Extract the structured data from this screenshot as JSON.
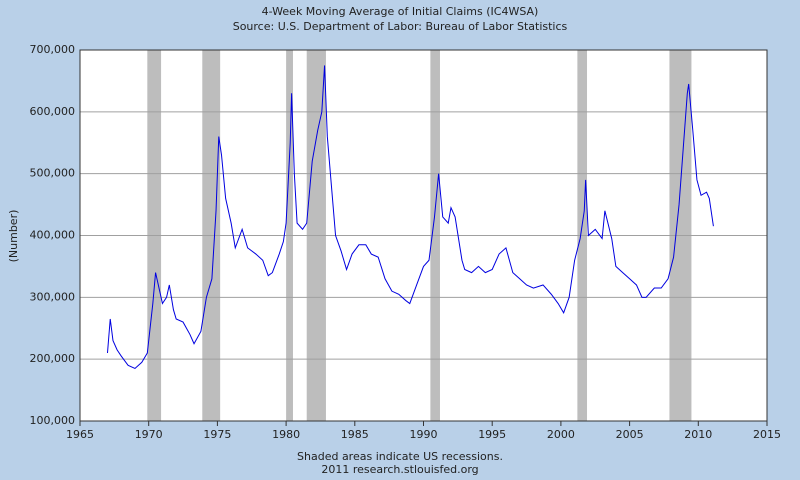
{
  "chart_data": {
    "type": "line",
    "title": "4-Week Moving Average of Initial Claims (IC4WSA)",
    "subtitle": "Source: U.S. Department of Labor: Bureau of Labor Statistics",
    "y_label": "(Number)",
    "notes": [
      "Shaded areas indicate US recessions.",
      "2011 research.stlouisfed.org"
    ],
    "xlim": [
      1965,
      2015
    ],
    "xticks": [
      1965,
      1970,
      1975,
      1980,
      1985,
      1990,
      1995,
      2000,
      2005,
      2010,
      2015
    ],
    "ylim": [
      100000,
      700000
    ],
    "yticks": [
      {
        "value": 100000,
        "label": "100,000"
      },
      {
        "value": 200000,
        "label": "200,000"
      },
      {
        "value": 300000,
        "label": "300,000"
      },
      {
        "value": 400000,
        "label": "400,000"
      },
      {
        "value": 500000,
        "label": "500,000"
      },
      {
        "value": 600000,
        "label": "600,000"
      },
      {
        "value": 700000,
        "label": "700,000"
      }
    ],
    "grid": true,
    "recession_color": "#bdbdbd",
    "recessions": [
      [
        1969.9,
        1970.9
      ],
      [
        1973.9,
        1975.2
      ],
      [
        1980.0,
        1980.5
      ],
      [
        1981.5,
        1982.9
      ],
      [
        1990.5,
        1991.2
      ],
      [
        2001.2,
        2001.9
      ],
      [
        2007.9,
        2009.5
      ]
    ],
    "series": [
      {
        "name": "IC4WSA",
        "color": "#0000e0",
        "x": [
          1967.0,
          1967.2,
          1967.4,
          1967.7,
          1968.0,
          1968.5,
          1969.0,
          1969.5,
          1969.9,
          1970.3,
          1970.5,
          1970.8,
          1971.0,
          1971.3,
          1971.5,
          1971.8,
          1972.0,
          1972.5,
          1973.0,
          1973.3,
          1973.8,
          1974.2,
          1974.6,
          1974.9,
          1975.1,
          1975.3,
          1975.6,
          1976.0,
          1976.3,
          1976.8,
          1977.2,
          1977.8,
          1978.3,
          1978.7,
          1979.0,
          1979.5,
          1979.8,
          1980.0,
          1980.3,
          1980.4,
          1980.6,
          1980.8,
          1981.2,
          1981.5,
          1981.9,
          1982.3,
          1982.6,
          1982.8,
          1983.0,
          1983.3,
          1983.6,
          1984.0,
          1984.4,
          1984.8,
          1985.3,
          1985.8,
          1986.2,
          1986.7,
          1987.2,
          1987.7,
          1988.2,
          1988.7,
          1989.0,
          1989.5,
          1990.0,
          1990.4,
          1990.8,
          1991.1,
          1991.4,
          1991.8,
          1992.0,
          1992.3,
          1992.8,
          1993.0,
          1993.5,
          1994.0,
          1994.5,
          1995.0,
          1995.5,
          1996.0,
          1996.5,
          1997.0,
          1997.5,
          1998.0,
          1998.7,
          1999.3,
          1999.8,
          2000.2,
          2000.6,
          2001.0,
          2001.4,
          2001.7,
          2001.8,
          2002.0,
          2002.5,
          2003.0,
          2003.2,
          2003.7,
          2004.0,
          2004.5,
          2005.0,
          2005.5,
          2005.9,
          2006.2,
          2006.8,
          2007.3,
          2007.8,
          2008.2,
          2008.6,
          2008.9,
          2009.2,
          2009.3,
          2009.6,
          2009.9,
          2010.2,
          2010.6,
          2010.8,
          2011.1
        ],
        "values": [
          210000,
          265000,
          230000,
          215000,
          205000,
          190000,
          185000,
          195000,
          210000,
          290000,
          340000,
          310000,
          290000,
          300000,
          320000,
          280000,
          265000,
          260000,
          240000,
          225000,
          245000,
          300000,
          330000,
          440000,
          560000,
          530000,
          460000,
          420000,
          380000,
          410000,
          380000,
          370000,
          360000,
          335000,
          340000,
          370000,
          390000,
          420000,
          550000,
          630000,
          500000,
          420000,
          410000,
          420000,
          520000,
          570000,
          600000,
          675000,
          560000,
          480000,
          400000,
          375000,
          345000,
          370000,
          385000,
          385000,
          370000,
          365000,
          330000,
          310000,
          305000,
          295000,
          290000,
          320000,
          350000,
          360000,
          430000,
          500000,
          430000,
          420000,
          445000,
          430000,
          360000,
          345000,
          340000,
          350000,
          340000,
          345000,
          370000,
          380000,
          340000,
          330000,
          320000,
          315000,
          320000,
          305000,
          290000,
          275000,
          300000,
          360000,
          395000,
          440000,
          490000,
          400000,
          410000,
          395000,
          440000,
          395000,
          350000,
          340000,
          330000,
          320000,
          300000,
          300000,
          315000,
          315000,
          330000,
          365000,
          450000,
          540000,
          630000,
          645000,
          570000,
          490000,
          465000,
          470000,
          460000,
          415000
        ]
      }
    ]
  }
}
